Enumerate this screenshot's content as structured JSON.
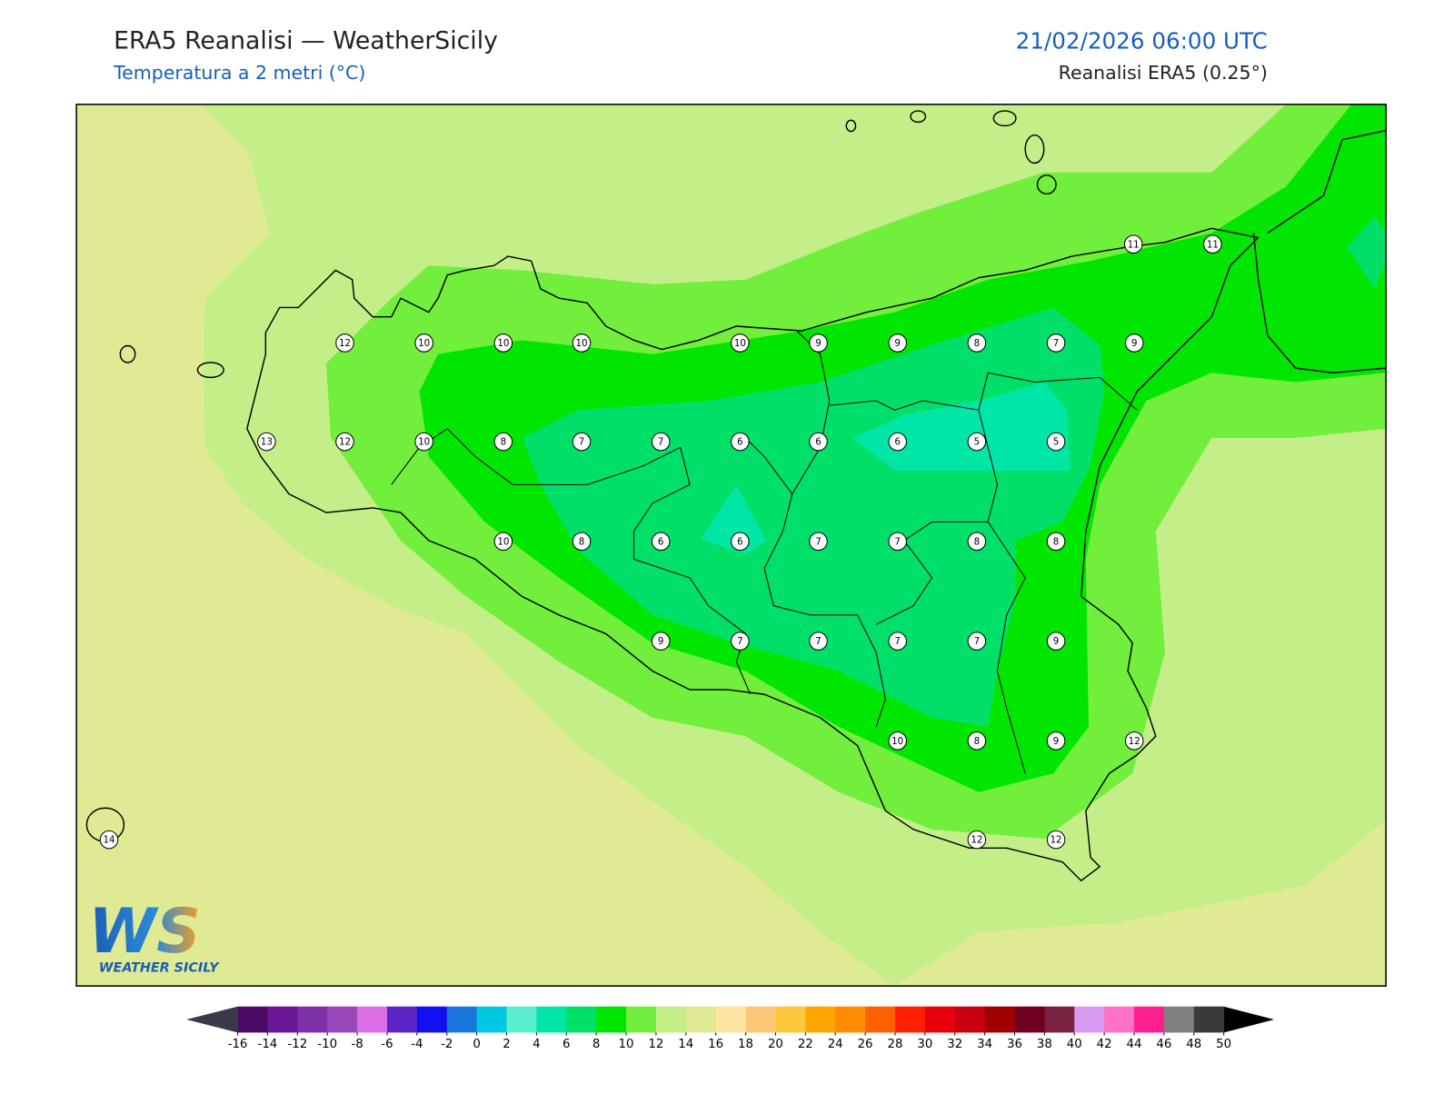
{
  "header": {
    "title": "ERA5 Reanalisi — WeatherSicily",
    "subtitle": "Temperatura a 2 metri (°C)",
    "date": "21/02/2026 06:00 UTC",
    "source": "Reanalisi ERA5 (0.25°)"
  },
  "stations": [
    11,
    11,
    12,
    10,
    10,
    10,
    10,
    9,
    9,
    8,
    7,
    9,
    13,
    12,
    10,
    8,
    7,
    7,
    6,
    6,
    6,
    5,
    5,
    10,
    8,
    6,
    6,
    7,
    7,
    8,
    8,
    9,
    7,
    7,
    7,
    7,
    9,
    10,
    8,
    9,
    12,
    14,
    12,
    12
  ],
  "colorbar": {
    "ticks": [
      -16,
      -14,
      -12,
      -10,
      -8,
      -6,
      -4,
      -2,
      0,
      2,
      4,
      6,
      8,
      10,
      12,
      14,
      16,
      18,
      20,
      22,
      24,
      26,
      28,
      30,
      32,
      34,
      36,
      38,
      40,
      42,
      44,
      46,
      48,
      50
    ],
    "colors": [
      "#4a0a66",
      "#6a1596",
      "#7e30a8",
      "#9a48bc",
      "#dc6ee6",
      "#5a26c6",
      "#1010f0",
      "#1a78dc",
      "#00c8e0",
      "#5aeed0",
      "#00e6a6",
      "#00e068",
      "#00e600",
      "#72ee3c",
      "#c4ef88",
      "#e0ea94",
      "#ffe3a0",
      "#fcc878",
      "#fcc83c",
      "#ffa500",
      "#ff8c00",
      "#ff6000",
      "#ff2000",
      "#e8000a",
      "#c80010",
      "#a00000",
      "#700020",
      "#7a2040",
      "#d89af0",
      "#ff70c8",
      "#ff2090",
      "#808080",
      "#3a3a3a"
    ],
    "under": "#3a3a48",
    "over": "#000000"
  },
  "logo": {
    "mark": "WS",
    "name": "WEATHER SICILY"
  }
}
